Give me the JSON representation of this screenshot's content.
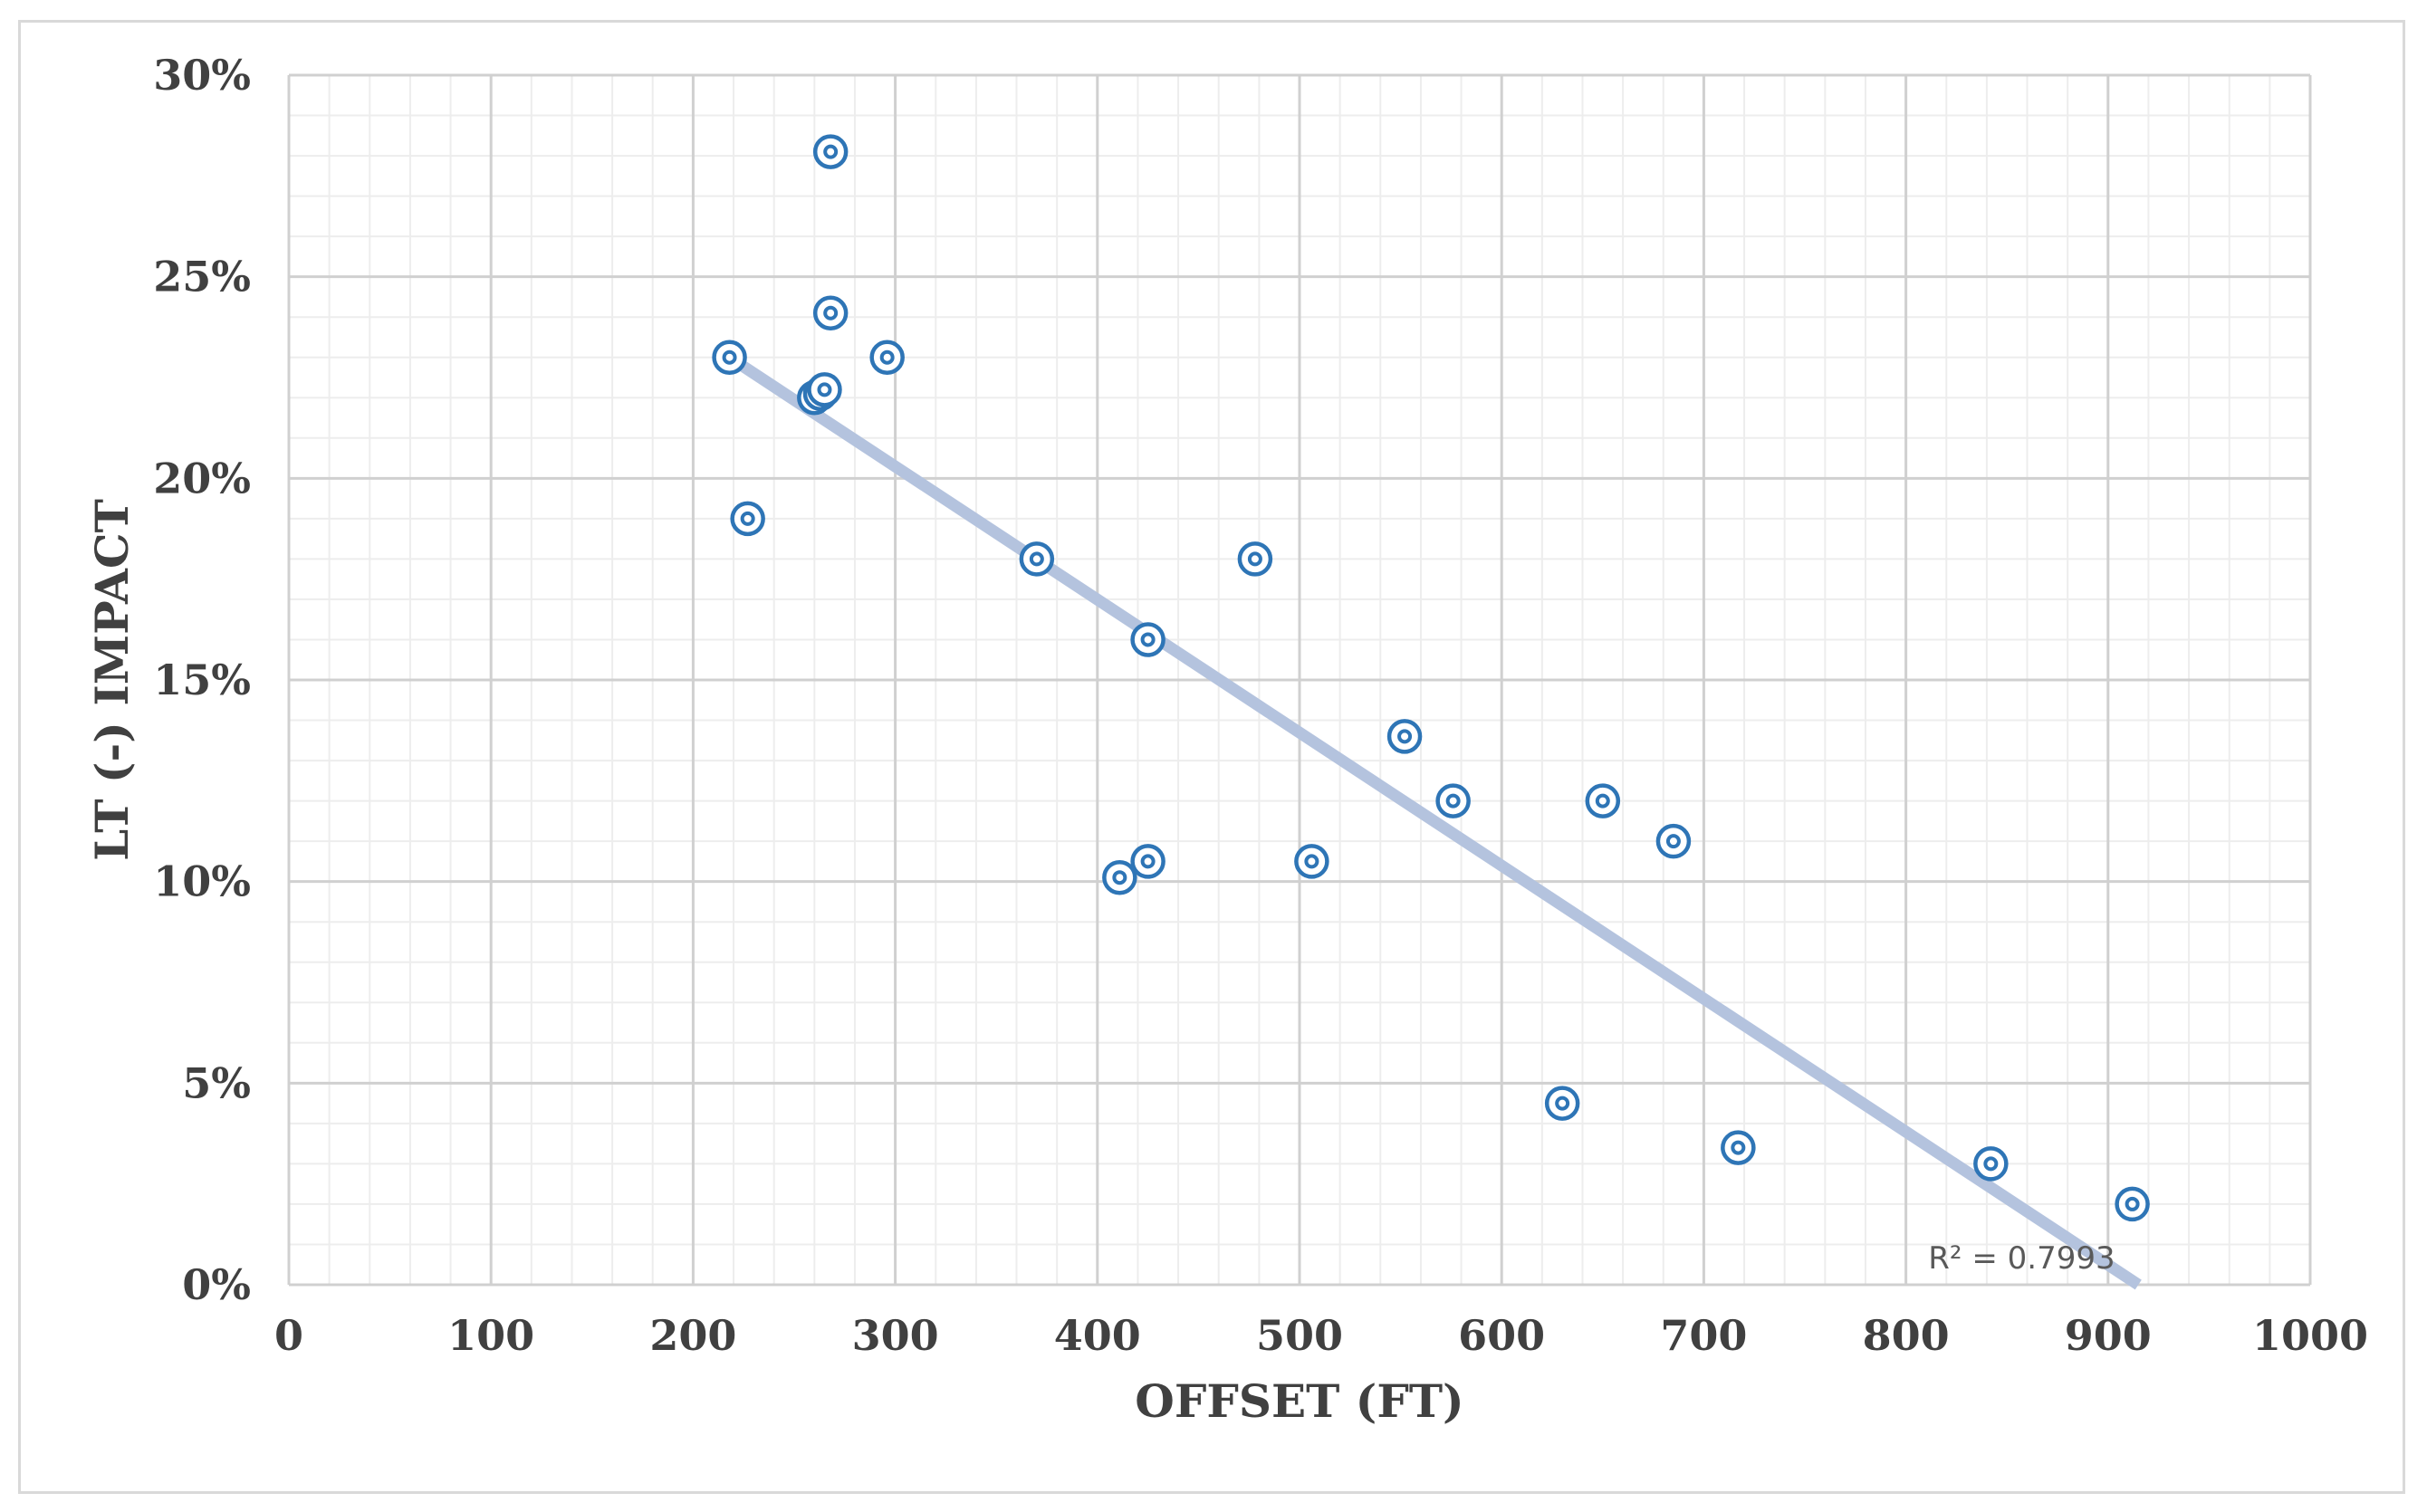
{
  "chart_data": {
    "type": "scatter",
    "title": "",
    "xlabel": "OFFSET (FT)",
    "ylabel": "LT (-) IMPACT",
    "xlim": [
      0,
      1000
    ],
    "ylim": [
      0,
      30
    ],
    "x_ticks": [
      "0",
      "100",
      "200",
      "300",
      "400",
      "500",
      "600",
      "700",
      "800",
      "900",
      "1000"
    ],
    "y_ticks": [
      "0%",
      "5%",
      "10%",
      "15%",
      "20%",
      "25%",
      "30%"
    ],
    "x_tick_values": [
      0,
      100,
      200,
      300,
      400,
      500,
      600,
      700,
      800,
      900,
      1000
    ],
    "y_tick_values": [
      0,
      5,
      10,
      15,
      20,
      25,
      30
    ],
    "grid": true,
    "minor_grid": true,
    "legend": "none",
    "marker_color": "#2e75b6",
    "trendline_color": "#b4c3de",
    "series": [
      {
        "x": [
          218,
          227,
          260,
          263,
          265,
          268,
          268,
          296,
          370,
          411,
          425,
          425,
          478,
          506,
          552,
          576,
          630,
          650,
          685,
          717,
          842,
          912
        ],
        "y": [
          23.0,
          19.0,
          22.0,
          22.1,
          22.2,
          28.1,
          24.1,
          23.0,
          18.0,
          10.1,
          10.5,
          16.0,
          18.0,
          10.5,
          13.6,
          12.0,
          4.5,
          12.0,
          11.0,
          3.4,
          3.0,
          2.0
        ]
      }
    ],
    "trendline": {
      "type": "linear",
      "x": [
        218,
        915
      ],
      "y": [
        23.0,
        0.0
      ],
      "r_squared_label": "R² = 0.7993"
    }
  }
}
